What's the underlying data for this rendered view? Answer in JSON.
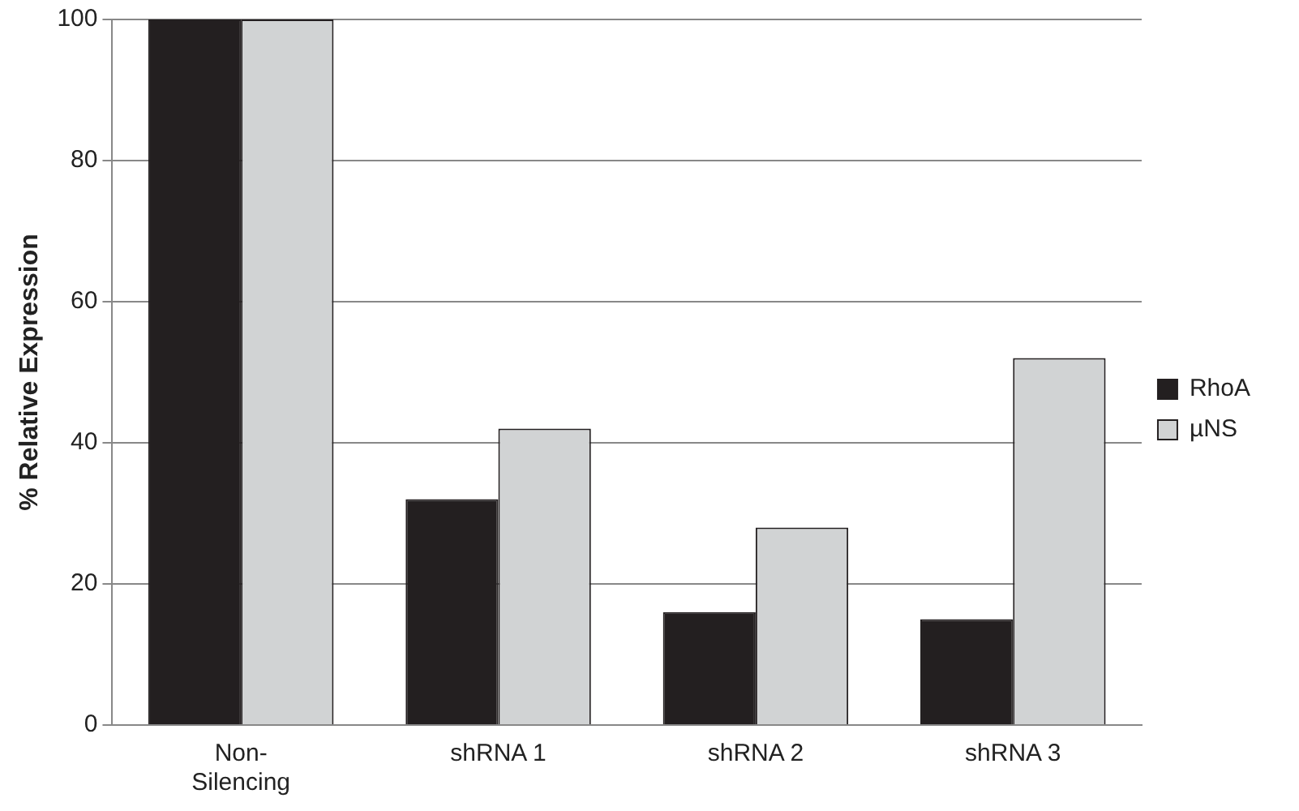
{
  "chart_data": {
    "type": "bar",
    "ylabel": "% Relative Expression",
    "categories": [
      "Non-Silencing",
      "shRNA 1",
      "shRNA 2",
      "shRNA 3"
    ],
    "series": [
      {
        "name": "RhoA",
        "color": "#231f20",
        "values": [
          100,
          32,
          16,
          15
        ]
      },
      {
        "name": "µNS",
        "color": "#d1d3d4",
        "values": [
          100,
          42,
          28,
          52
        ]
      }
    ],
    "ylim": [
      0,
      100
    ],
    "yticks": [
      0,
      20,
      40,
      60,
      80,
      100
    ],
    "grid": "y",
    "legend": "right"
  }
}
